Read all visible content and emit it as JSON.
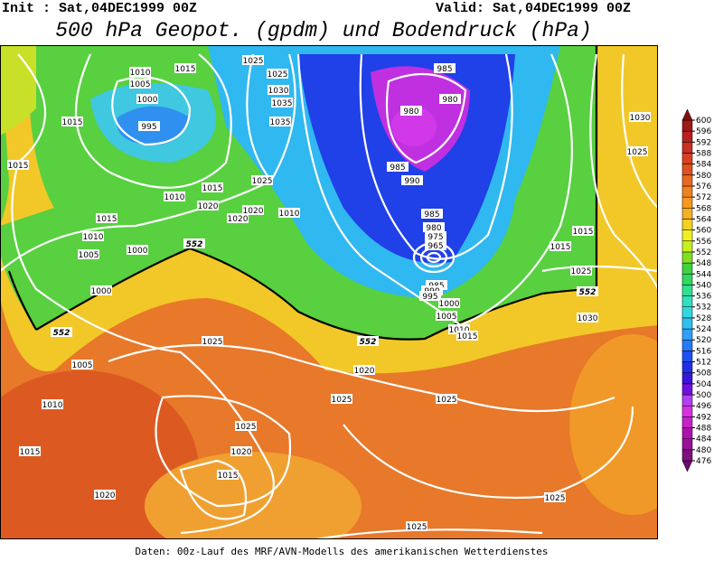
{
  "header": {
    "init": "Init : Sat,04DEC1999 00Z",
    "valid": "Valid: Sat,04DEC1999 00Z",
    "title": "500 hPa Geopot. (gpdm) und Bodendruck (hPa)"
  },
  "map": {
    "isobar_labels": [
      1015,
      1010,
      1005,
      1000,
      995,
      1015,
      1015,
      1025,
      1025,
      1030,
      1035,
      1035,
      1025,
      1015,
      1010,
      1020,
      1020,
      1020,
      1010,
      1015,
      1010,
      1005,
      1000,
      1000,
      985,
      980,
      980,
      985,
      990,
      985,
      980,
      975,
      965,
      985,
      990,
      995,
      1000,
      1005,
      1010,
      1015,
      1020,
      1025,
      1025,
      1025,
      1020,
      1015,
      1020,
      1015,
      1010,
      1005,
      1025,
      1015,
      1015,
      1025,
      1030,
      1030,
      1025,
      1025,
      1025
    ],
    "height_labels": [
      552,
      552,
      552,
      552
    ]
  },
  "colorbar": {
    "levels": [
      476,
      480,
      484,
      488,
      492,
      496,
      500,
      504,
      508,
      512,
      516,
      520,
      524,
      528,
      532,
      536,
      540,
      544,
      548,
      552,
      556,
      560,
      564,
      568,
      572,
      576,
      580,
      584,
      588,
      592,
      596,
      600
    ],
    "colors": [
      "#6a0a6a",
      "#80107f",
      "#9a109a",
      "#b010b0",
      "#c820c8",
      "#d830e0",
      "#b040f0",
      "#7010e0",
      "#3c14d8",
      "#2030e8",
      "#2050f0",
      "#2878f8",
      "#30a0f8",
      "#30c0f0",
      "#30d8e0",
      "#30e0c0",
      "#30e090",
      "#30d860",
      "#40d040",
      "#80e020",
      "#c8f020",
      "#f0f020",
      "#f8d020",
      "#f8b020",
      "#f89820",
      "#f08020",
      "#e86820",
      "#e05020",
      "#d84020",
      "#c83020",
      "#b82020",
      "#a01818",
      "#801010"
    ]
  },
  "footer": "Daten: 00z-Lauf des MRF/AVN-Modells des amerikanischen Wetterdienstes"
}
